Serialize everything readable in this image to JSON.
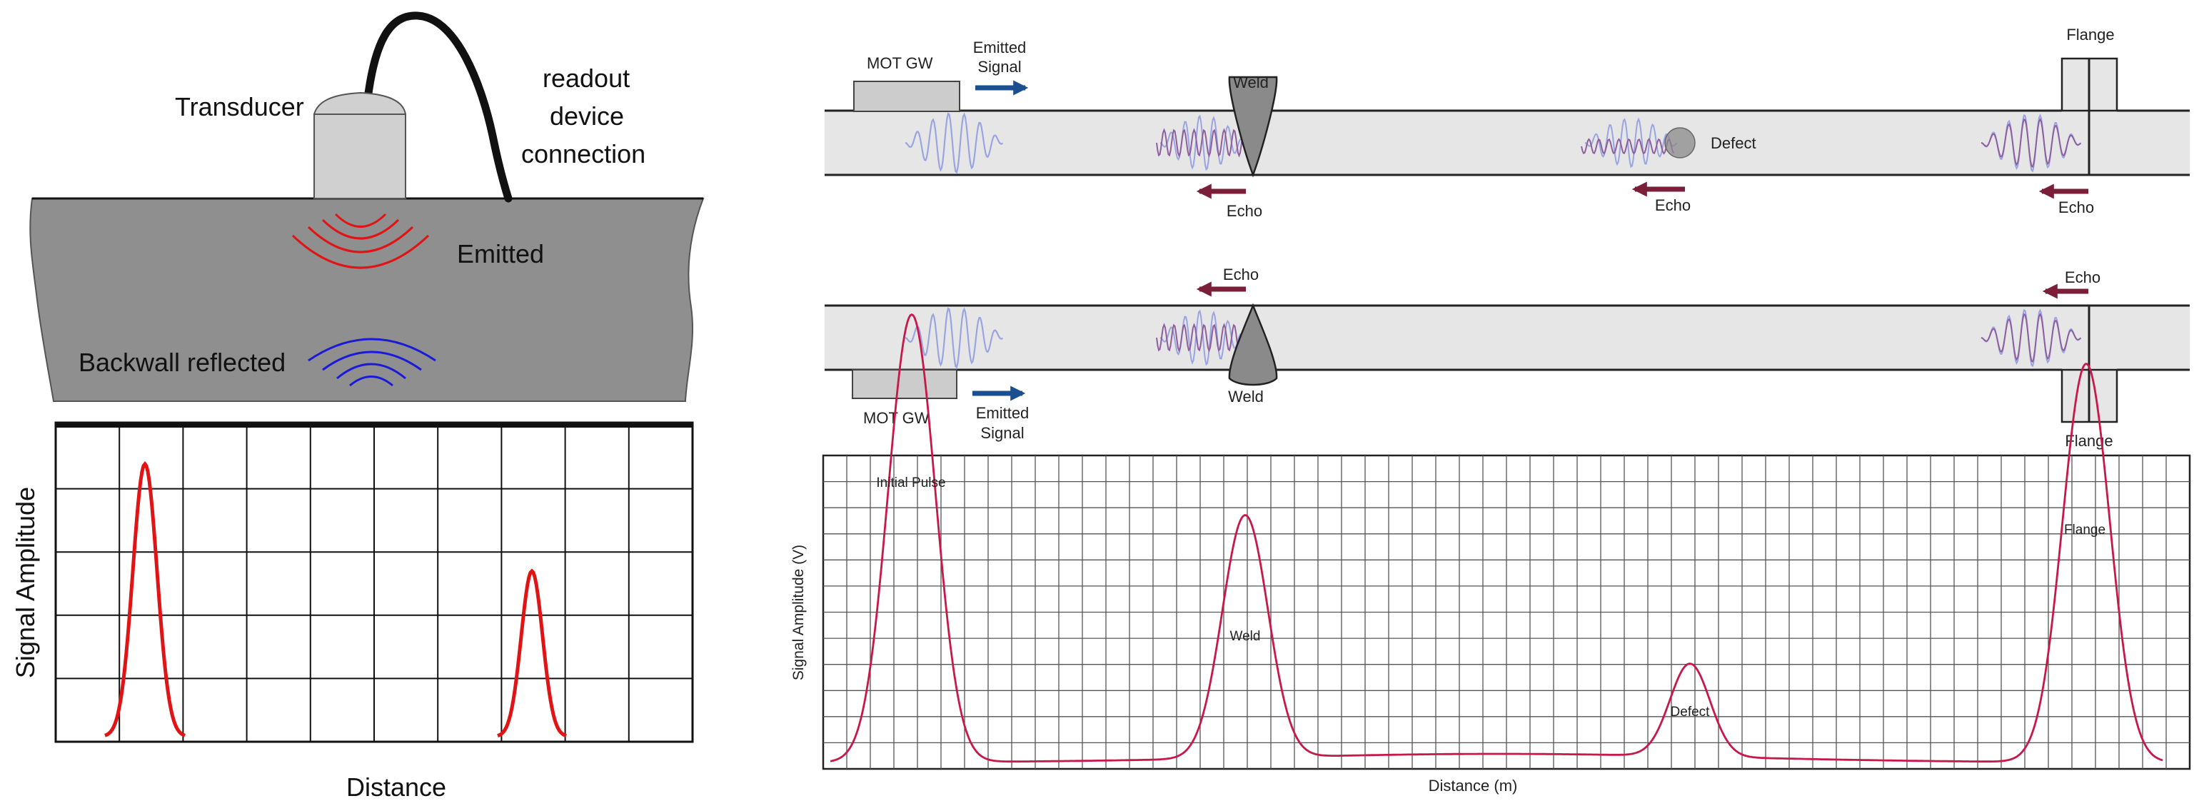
{
  "left_diagram": {
    "transducer_label": "Transducer",
    "cable_label_lines": [
      "readout",
      "device",
      "connection"
    ],
    "emitted_label": "Emitted",
    "backwall_label": "Backwall reflected",
    "chart": {
      "ylabel": "Signal Amplitude",
      "xlabel": "Distance",
      "line_color": "#e01414"
    }
  },
  "right_diagram": {
    "top_pipe": {
      "mot_label": "MOT GW",
      "emitted_signal_lines": [
        "Emitted",
        "Signal"
      ],
      "weld_label": "Weld",
      "defect_label": "Defect",
      "flange_label": "Flange",
      "echo_labels": [
        "Echo",
        "Echo",
        "Echo"
      ]
    },
    "bottom_pipe": {
      "mot_label": "MOT GW",
      "emitted_signal_lines": [
        "Emitted",
        "Signal"
      ],
      "weld_label": "Weld",
      "flange_label": "Flange",
      "echo_labels": [
        "Echo",
        "Echo"
      ]
    },
    "chart": {
      "ylabel": "Signal Amplitude (V)",
      "xlabel": "Distance (m)",
      "peak_labels": [
        "Initial Pulse",
        "Weld",
        "Defect",
        "Flange"
      ],
      "line_color": "#c8184a"
    }
  },
  "colors": {
    "pipe_fill": "#e6e6e6",
    "steel_fill": "#8f8f8f",
    "emitted_arc": "#e01414",
    "reflected_arc": "#1a1ad8",
    "emitted_arrow": "#1c4f8f",
    "echo_arrow": "#7a1e3a",
    "wave_blue": "#9aa4e0",
    "wave_purple": "#8e5f9e"
  }
}
